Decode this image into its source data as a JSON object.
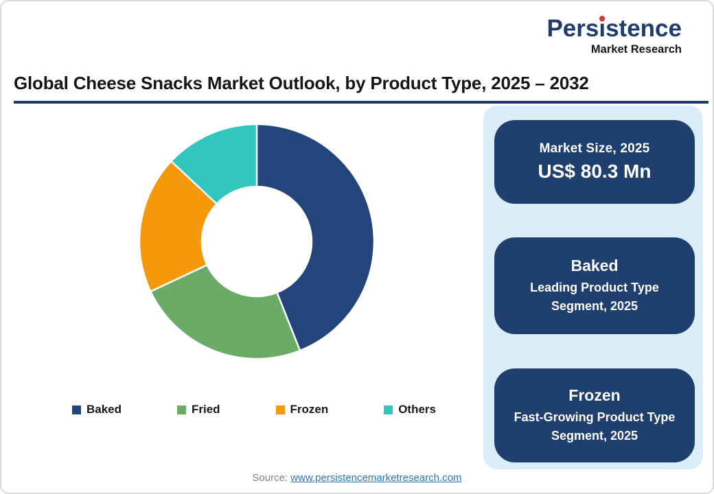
{
  "logo": {
    "brand_prefix": "Pers",
    "brand_i": "i",
    "brand_suffix": "stence",
    "tagline": "Market Research",
    "brand_color": "#1E3C6E",
    "dot_color": "#D9342B"
  },
  "header": {
    "title": "Global Cheese Snacks Market Outlook, by Product Type, 2025 – 2032",
    "rule_color": "#1F3864"
  },
  "chart_data": {
    "type": "pie",
    "subtype": "donut",
    "title": "Global Cheese Snacks Market Outlook, by Product Type, 2025 – 2032",
    "categories": [
      "Baked",
      "Fried",
      "Frozen",
      "Others"
    ],
    "values": [
      44,
      24,
      19,
      13
    ],
    "values_note": "percent share, estimated from segment angles (no data labels shown)",
    "colors": [
      "#24447C",
      "#6BAB67",
      "#F5980B",
      "#31C7BF"
    ],
    "start_angle_deg": 0,
    "direction": "clockwise",
    "inner_radius_ratio": 0.47,
    "separator_color": "#ffffff",
    "legend_position": "bottom"
  },
  "legend": {
    "items": [
      {
        "label": "Baked",
        "color": "#24447C"
      },
      {
        "label": "Fried",
        "color": "#6BAB67"
      },
      {
        "label": "Frozen",
        "color": "#F5980B"
      },
      {
        "label": "Others",
        "color": "#31C7BF"
      }
    ]
  },
  "info_panel": {
    "background": "#DAEDF8",
    "card_background": "#1F3F6E",
    "market_size_card": {
      "kicker": "Market Size, 2025",
      "value": "US$ 80.3 Mn"
    },
    "leading_segment_card": {
      "title": "Baked",
      "subtitle": "Leading Product Type Segment, 2025"
    },
    "fast_growing_segment_card": {
      "title": "Frozen",
      "subtitle": "Fast-Growing Product Type Segment, 2025"
    }
  },
  "source": {
    "label": "Source:",
    "link_text": "www.persistencemarketresearch.com"
  }
}
